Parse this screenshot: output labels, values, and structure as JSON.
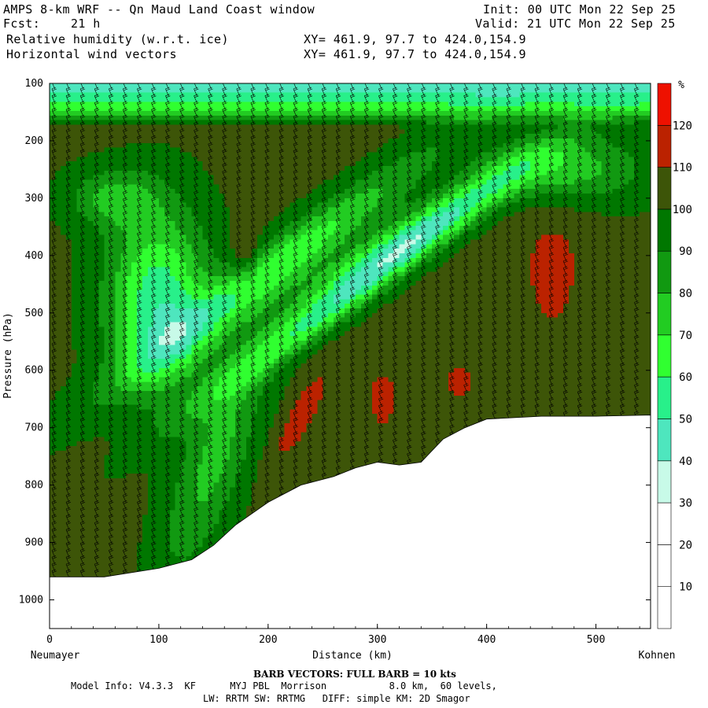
{
  "header": {
    "title": "AMPS 8-km WRF -- Qn Maud Land Coast window",
    "init": "Init: 00 UTC Mon 22 Sep 25",
    "fcst_label": "Fcst:",
    "fcst_value": "21 h",
    "valid": "Valid: 21 UTC Mon 22 Sep 25",
    "field1": "Relative humidity (w.r.t. ice)",
    "field2": "Horizontal wind vectors",
    "xy1": "XY= 461.9, 97.7 to 424.0,154.9",
    "xy2": "XY= 461.9, 97.7 to 424.0,154.9"
  },
  "chart_data": {
    "type": "heatmap",
    "title": "Relative humidity (w.r.t. ice)",
    "xlabel": "Distance (km)",
    "ylabel": "Pressure (hPa)",
    "x_ticks": [
      0,
      100,
      200,
      300,
      400,
      500
    ],
    "y_ticks": [
      100,
      200,
      300,
      400,
      500,
      600,
      700,
      800,
      900,
      1000
    ],
    "xlim": [
      0,
      550
    ],
    "ylim": [
      100,
      1050
    ],
    "x_endpoint_labels": {
      "left": "Neumayer",
      "right": "Kohnen"
    },
    "colorbar": {
      "unit": "%",
      "levels": [
        10,
        20,
        30,
        40,
        50,
        60,
        70,
        80,
        90,
        100,
        110,
        120
      ],
      "colors": [
        "#ffffff",
        "#ffffff",
        "#ffffff",
        "#c8fae8",
        "#4ee6be",
        "#28f08a",
        "#30ff30",
        "#22cc22",
        "#119911",
        "#007700",
        "#3d5508",
        "#bb2200",
        "#ee1100"
      ]
    },
    "terrain_surface_pressure": {
      "distance_km": [
        0,
        50,
        100,
        130,
        150,
        170,
        200,
        230,
        260,
        280,
        300,
        320,
        340,
        360,
        380,
        400,
        450,
        500,
        550
      ],
      "pressure_hpa": [
        960,
        960,
        945,
        930,
        905,
        870,
        830,
        800,
        785,
        770,
        760,
        765,
        760,
        720,
        700,
        685,
        680,
        680,
        678
      ]
    },
    "barb_note": "BARB VECTORS: FULL BARB = 10 kts"
  },
  "footer": {
    "barb_label": "BARB VECTORS: FULL BARB = 10 kts",
    "model_line1": "Model Info: V4.3.3  KF      MYJ PBL  Morrison           8.0 km,  60 levels,",
    "model_line2": "LW: RRTM SW: RRTMG   DIFF: simple KM: 2D Smagor"
  }
}
